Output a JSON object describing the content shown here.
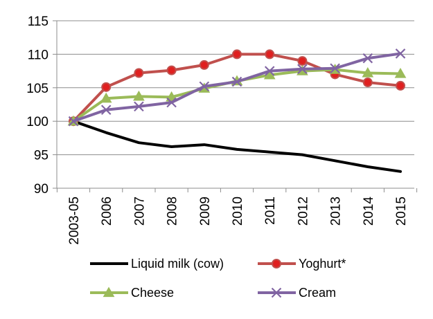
{
  "chart_data": {
    "type": "line",
    "title": "",
    "xlabel": "",
    "ylabel": "",
    "categories": [
      "2003-05",
      "2006",
      "2007",
      "2008",
      "2009",
      "2010",
      "2011",
      "2012",
      "2013",
      "2014",
      "2015"
    ],
    "ylim": [
      90,
      115
    ],
    "yticks": [
      "90",
      "95",
      "100",
      "105",
      "110",
      "115"
    ],
    "grid": true,
    "legend_position": "bottom",
    "series": [
      {
        "name": "Liquid milk (cow)",
        "color": "#000000",
        "marker": "none",
        "values": [
          100,
          98.3,
          96.8,
          96.2,
          96.5,
          95.8,
          95.4,
          95.0,
          94.1,
          93.2,
          92.5
        ]
      },
      {
        "name": "Yoghurt*",
        "color": "#C0504D",
        "marker": "circle",
        "values": [
          100,
          105.1,
          107.2,
          107.6,
          108.4,
          110.0,
          110.0,
          109.0,
          107.0,
          105.8,
          105.3
        ]
      },
      {
        "name": "Cheese",
        "color": "#9BBB59",
        "marker": "triangle",
        "values": [
          100,
          103.4,
          103.7,
          103.6,
          104.9,
          106.0,
          106.9,
          107.5,
          107.7,
          107.2,
          107.1
        ]
      },
      {
        "name": "Cream",
        "color": "#8064A2",
        "marker": "x",
        "values": [
          100,
          101.7,
          102.2,
          102.8,
          105.2,
          105.9,
          107.5,
          107.8,
          107.9,
          109.4,
          110.1
        ]
      }
    ]
  }
}
